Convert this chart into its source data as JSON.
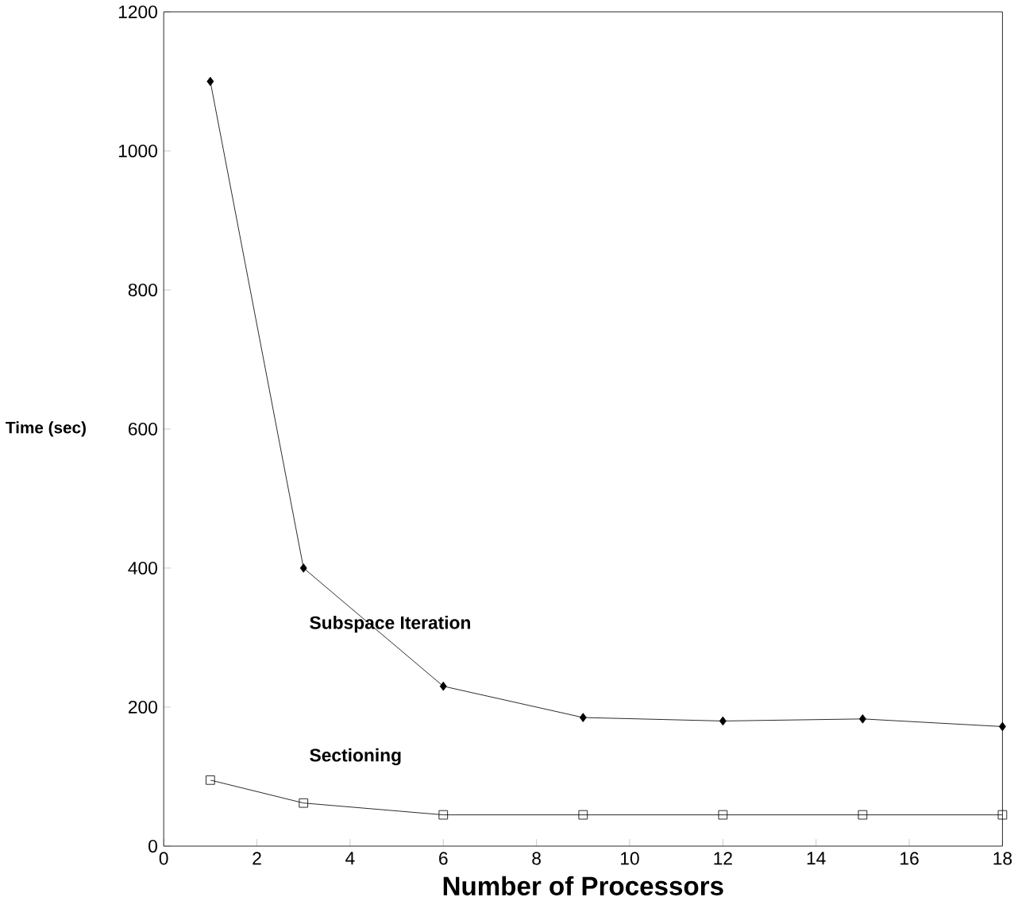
{
  "chart_data": {
    "type": "line",
    "xlabel": "Number of Processors",
    "ylabel": "Time (sec)",
    "x": [
      1,
      3,
      6,
      9,
      12,
      15,
      18
    ],
    "series": [
      {
        "name": "Subspace Iteration",
        "color": "#000000",
        "marker": "diamond",
        "values": [
          1100,
          400,
          230,
          185,
          180,
          183,
          172
        ]
      },
      {
        "name": "Sectioning",
        "color": "#000000",
        "marker": "square",
        "values": [
          95,
          62,
          45,
          45,
          45,
          45,
          45
        ]
      }
    ],
    "xlim": [
      0,
      18
    ],
    "xticks": [
      0,
      2,
      4,
      6,
      8,
      10,
      12,
      14,
      16,
      18
    ],
    "ylim": [
      0,
      1200
    ],
    "yticks": [
      0,
      200,
      400,
      600,
      800,
      1000,
      1200
    ],
    "grid": false,
    "legend": false,
    "line_style": "solid"
  }
}
